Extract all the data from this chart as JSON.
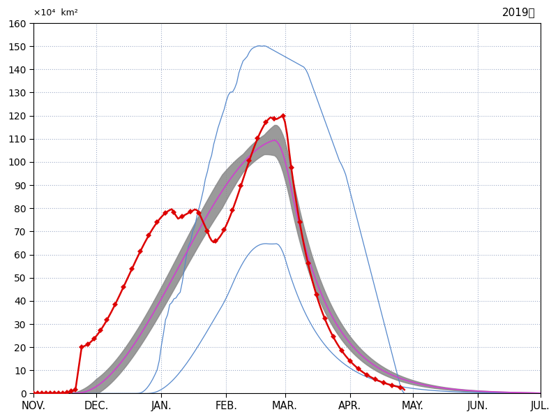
{
  "title": "2019年",
  "xticklabels": [
    "NOV.",
    "DEC.",
    "JAN.",
    "FEB.",
    "MAR.",
    "APR.",
    "MAY.",
    "JUN.",
    "JUL."
  ],
  "ylim": [
    0,
    160
  ],
  "yticks": [
    0,
    10,
    20,
    30,
    40,
    50,
    60,
    70,
    80,
    90,
    100,
    110,
    120,
    130,
    140,
    150,
    160
  ],
  "total_days": 243,
  "month_starts": [
    0,
    30,
    61,
    92,
    120,
    151,
    181,
    212,
    242
  ],
  "background_color": "#ffffff",
  "grid_color": "#8899bb",
  "band_color": "#888888",
  "mean_color": "#cc44cc",
  "max_min_color": "#5588cc",
  "obs_color": "#dd0000"
}
